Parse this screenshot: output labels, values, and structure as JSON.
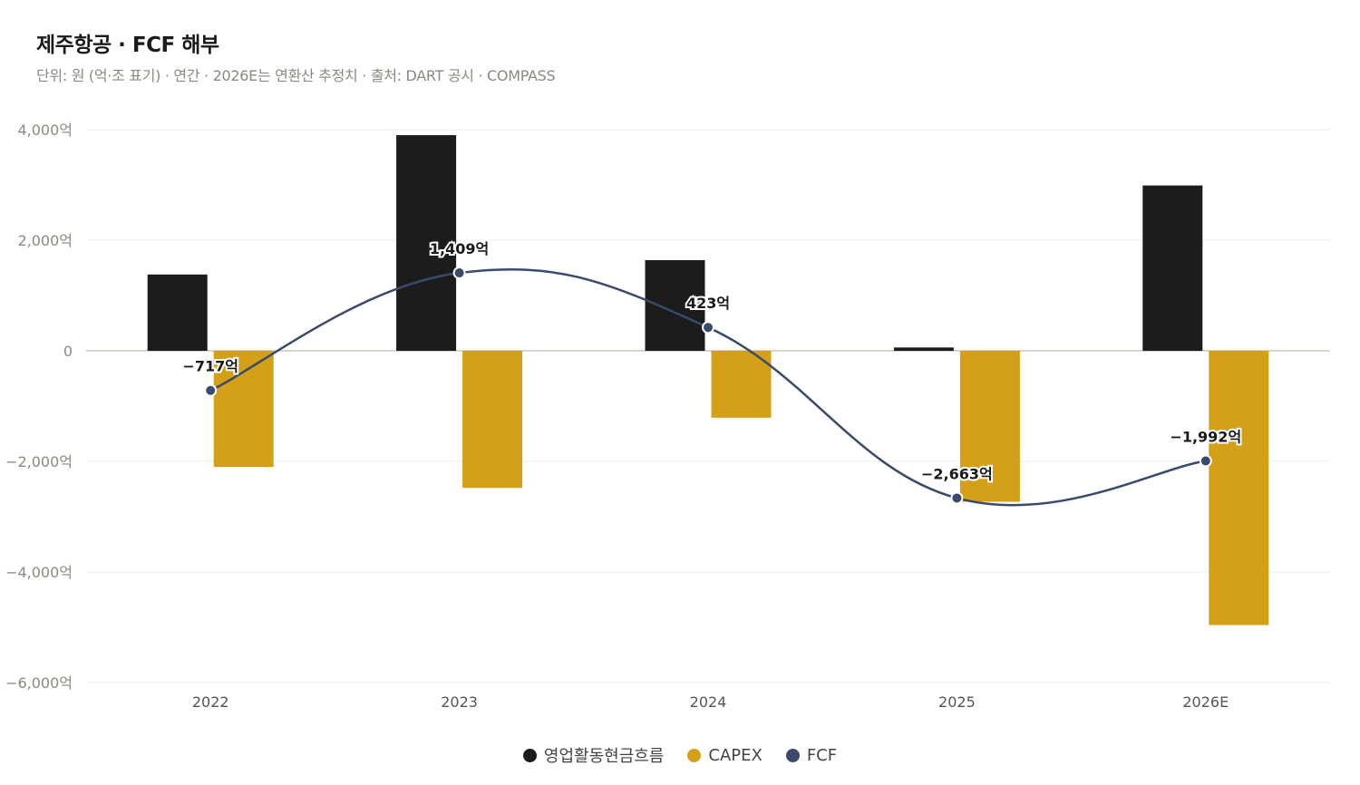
{
  "title": "제주항공 · FCF 해부",
  "subtitle": "단위: 원 (억·조 표기) · 연간 · 2026E는 연환산 추정치 · 출처: DART 공시 · COMPASS",
  "colors": {
    "operating_cf": "#1c1c1c",
    "capex": "#d4a017",
    "fcf": "#3a4a6b",
    "grid": "#ececec",
    "zero_line": "#c9c9b8",
    "tick_text": "#8a8a7e"
  },
  "legend": [
    {
      "label": "영업활동현금흐름",
      "color": "#1c1c1c"
    },
    {
      "label": "CAPEX",
      "color": "#d4a017"
    },
    {
      "label": "FCF",
      "color": "#3a4a6b"
    }
  ],
  "chart_data": {
    "type": "bar",
    "categories": [
      "2022",
      "2023",
      "2024",
      "2025",
      "2026E"
    ],
    "ylim": [
      -6000,
      4000
    ],
    "yticks": [
      4000,
      2000,
      0,
      -2000,
      -4000,
      -6000
    ],
    "ytick_labels": [
      "4,000억",
      "2,000억",
      "0",
      "−2,000억",
      "−4,000억",
      "−6,000억"
    ],
    "grid": true,
    "legend_position": "bottom",
    "series": [
      {
        "name": "영업활동현금흐름",
        "type": "bar",
        "values": [
          1380,
          3900,
          1640,
          60,
          2990
        ]
      },
      {
        "name": "CAPEX",
        "type": "bar",
        "values": [
          -2100,
          -2480,
          -1210,
          -2730,
          -4960
        ]
      },
      {
        "name": "FCF",
        "type": "line",
        "values": [
          -717,
          1409,
          423,
          -2663,
          -1992
        ]
      }
    ],
    "data_labels": [
      "−717억",
      "1,409억",
      "423억",
      "−2,663억",
      "−1,992억"
    ]
  }
}
